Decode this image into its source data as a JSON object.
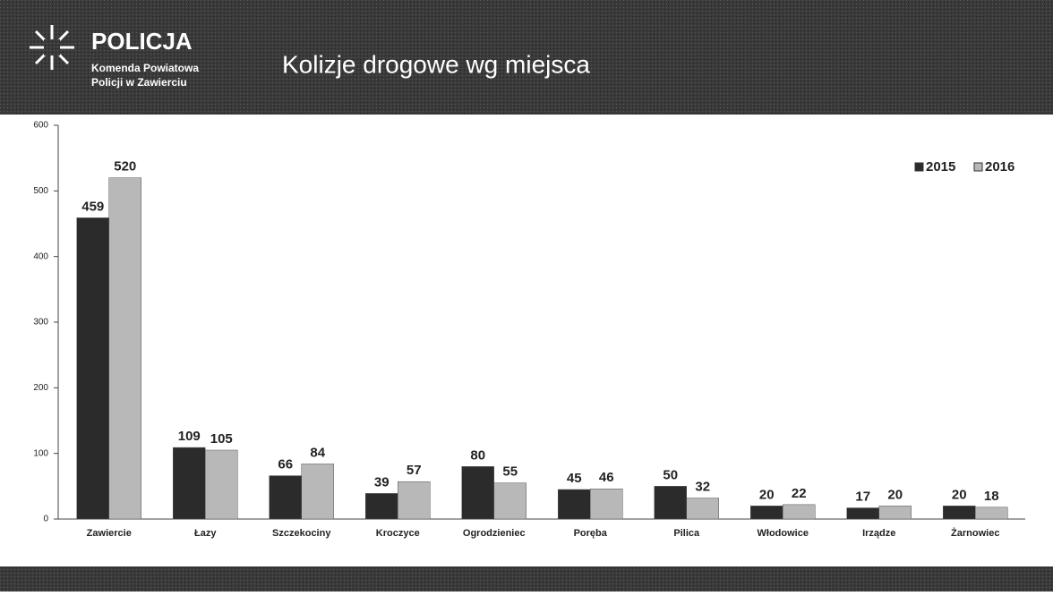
{
  "header": {
    "brand": "POLICJA",
    "line1": "Komenda Powiatowa",
    "line2": "Policji w Zawierciu"
  },
  "chart_data": {
    "type": "bar",
    "title": "Kolizje drogowe wg miejsca",
    "categories": [
      "Zawiercie",
      "Łazy",
      "Szczekociny",
      "Kroczyce",
      "Ogrodzieniec",
      "Poręba",
      "Pilica",
      "Włodowice",
      "Irządze",
      "Żarnowiec"
    ],
    "series": [
      {
        "name": "2015",
        "color": "#2b2b2b",
        "values": [
          459,
          109,
          66,
          39,
          80,
          45,
          50,
          20,
          17,
          20
        ]
      },
      {
        "name": "2016",
        "color": "#b8b8b8",
        "values": [
          520,
          105,
          84,
          57,
          55,
          46,
          32,
          22,
          20,
          18
        ]
      }
    ],
    "ylim": [
      0,
      600
    ],
    "yticks": [
      0,
      100,
      200,
      300,
      400,
      500,
      600
    ],
    "legend": "top-right"
  }
}
